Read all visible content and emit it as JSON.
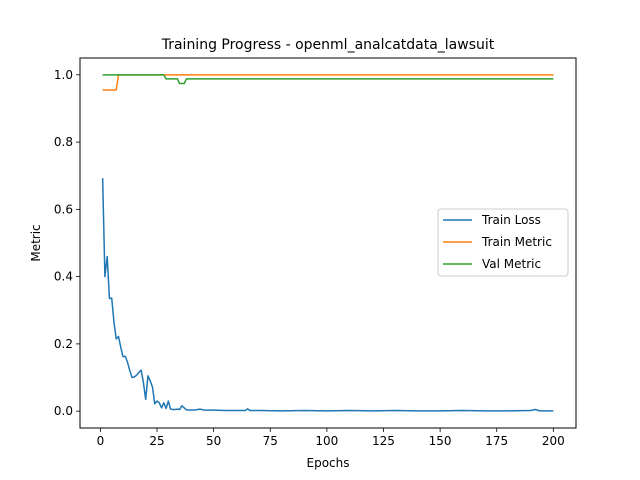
{
  "chart_data": {
    "type": "line",
    "title": "Training Progress - openml_analcatdata_lawsuit",
    "xlabel": "Epochs",
    "ylabel": "Metric",
    "xlim": [
      -9,
      210
    ],
    "ylim": [
      -0.05,
      1.05
    ],
    "x_ticks": [
      0,
      25,
      50,
      75,
      100,
      125,
      150,
      175,
      200
    ],
    "y_ticks": [
      0.0,
      0.2,
      0.4,
      0.6,
      0.8,
      1.0
    ],
    "grid": false,
    "legend_position": "center-right",
    "series": [
      {
        "name": "Train Loss",
        "color": "#1f77b4",
        "points": [
          [
            1,
            0.693
          ],
          [
            2,
            0.4
          ],
          [
            3,
            0.46
          ],
          [
            4,
            0.335
          ],
          [
            5,
            0.336
          ],
          [
            6,
            0.265
          ],
          [
            7,
            0.215
          ],
          [
            8,
            0.222
          ],
          [
            9,
            0.19
          ],
          [
            10,
            0.162
          ],
          [
            11,
            0.163
          ],
          [
            12,
            0.145
          ],
          [
            13,
            0.12
          ],
          [
            14,
            0.1
          ],
          [
            15,
            0.102
          ],
          [
            16,
            0.107
          ],
          [
            17,
            0.115
          ],
          [
            18,
            0.122
          ],
          [
            19,
            0.085
          ],
          [
            20,
            0.035
          ],
          [
            21,
            0.105
          ],
          [
            22,
            0.09
          ],
          [
            23,
            0.072
          ],
          [
            24,
            0.022
          ],
          [
            25,
            0.03
          ],
          [
            26,
            0.025
          ],
          [
            27,
            0.01
          ],
          [
            28,
            0.025
          ],
          [
            29,
            0.008
          ],
          [
            30,
            0.03
          ],
          [
            31,
            0.006
          ],
          [
            32,
            0.005
          ],
          [
            33,
            0.005
          ],
          [
            34,
            0.006
          ],
          [
            35,
            0.005
          ],
          [
            36,
            0.016
          ],
          [
            37,
            0.01
          ],
          [
            38,
            0.004
          ],
          [
            39,
            0.004
          ],
          [
            40,
            0.003
          ],
          [
            42,
            0.004
          ],
          [
            44,
            0.006
          ],
          [
            46,
            0.003
          ],
          [
            50,
            0.003
          ],
          [
            55,
            0.002
          ],
          [
            60,
            0.002
          ],
          [
            64,
            0.002
          ],
          [
            65,
            0.007
          ],
          [
            66,
            0.002
          ],
          [
            70,
            0.002
          ],
          [
            80,
            0.001
          ],
          [
            90,
            0.002
          ],
          [
            100,
            0.001
          ],
          [
            110,
            0.002
          ],
          [
            120,
            0.001
          ],
          [
            130,
            0.002
          ],
          [
            140,
            0.001
          ],
          [
            150,
            0.001
          ],
          [
            160,
            0.002
          ],
          [
            170,
            0.001
          ],
          [
            180,
            0.001
          ],
          [
            190,
            0.002
          ],
          [
            192,
            0.005
          ],
          [
            194,
            0.001
          ],
          [
            200,
            0.001
          ]
        ]
      },
      {
        "name": "Train Metric",
        "color": "#ff7f0e",
        "points": [
          [
            1,
            0.955
          ],
          [
            7,
            0.955
          ],
          [
            8,
            1.0
          ],
          [
            200,
            1.0
          ]
        ]
      },
      {
        "name": "Val Metric",
        "color": "#2ca02c",
        "points": [
          [
            1,
            1.0
          ],
          [
            28,
            1.0
          ],
          [
            29,
            0.988
          ],
          [
            34,
            0.988
          ],
          [
            35,
            0.974
          ],
          [
            37,
            0.974
          ],
          [
            38,
            0.988
          ],
          [
            200,
            0.988
          ]
        ]
      }
    ]
  }
}
